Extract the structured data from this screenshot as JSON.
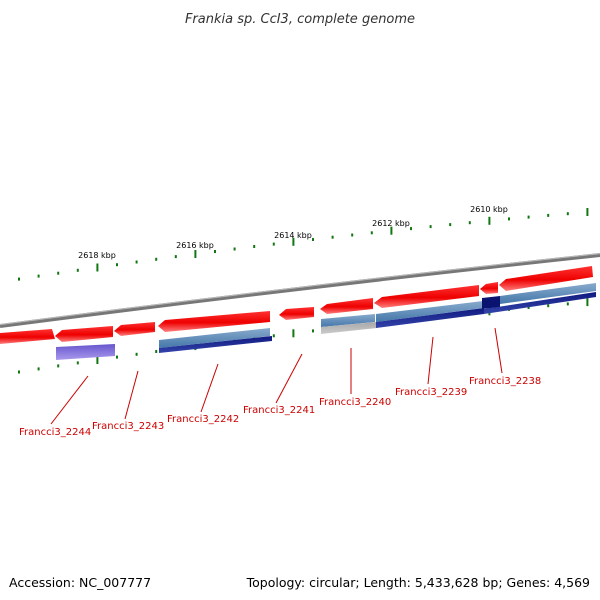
{
  "title": "Frankia sp. CcI3, complete genome",
  "accession": "Accession: NC_007777",
  "stats": "Topology: circular; Length: 5,433,628 bp; Genes: 4,569",
  "colors": {
    "forward_gene": "#ee1111",
    "forward_gene_light": "#ff7777",
    "gene_label": "#cc0000",
    "backbone": "#808080",
    "tick": "#117711",
    "cds_steel": "#5588bb",
    "cds_navy": "#0a1470",
    "cds_purple": "#7766dd",
    "cds_gray": "#b0b0b0"
  },
  "scale_labels": [
    {
      "text": "2618 kbp"
    },
    {
      "text": "2616 kbp"
    },
    {
      "text": "2614 kbp"
    },
    {
      "text": "2612 kbp"
    },
    {
      "text": "2610 kbp"
    }
  ],
  "genes": [
    {
      "id": "Francci3_2244"
    },
    {
      "id": "Francci3_2243"
    },
    {
      "id": "Francci3_2242"
    },
    {
      "id": "Francci3_2241"
    },
    {
      "id": "Francci3_2240"
    },
    {
      "id": "Francci3_2239"
    },
    {
      "id": "Francci3_2238"
    }
  ]
}
